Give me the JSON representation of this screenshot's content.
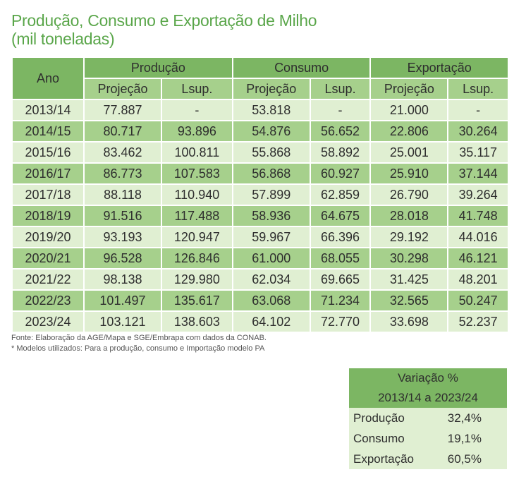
{
  "title": {
    "main": "Produção, Consumo e Exportação de Milho",
    "sub": "(mil toneladas)"
  },
  "table": {
    "ano_label": "Ano",
    "groups": [
      "Produção",
      "Consumo",
      "Exportação"
    ],
    "subheaders": [
      "Projeção",
      "Lsup.",
      "Projeção",
      "Lsup.",
      "Projeção",
      "Lsup."
    ],
    "rows": [
      [
        "2013/14",
        "77.887",
        "-",
        "53.818",
        "-",
        "21.000",
        "-"
      ],
      [
        "2014/15",
        "80.717",
        "93.896",
        "54.876",
        "56.652",
        "22.806",
        "30.264"
      ],
      [
        "2015/16",
        "83.462",
        "100.811",
        "55.868",
        "58.892",
        "25.001",
        "35.117"
      ],
      [
        "2016/17",
        "86.773",
        "107.583",
        "56.868",
        "60.927",
        "25.910",
        "37.144"
      ],
      [
        "2017/18",
        "88.118",
        "110.940",
        "57.899",
        "62.859",
        "26.790",
        "39.264"
      ],
      [
        "2018/19",
        "91.516",
        "117.488",
        "58.936",
        "64.675",
        "28.018",
        "41.748"
      ],
      [
        "2019/20",
        "93.193",
        "120.947",
        "59.967",
        "66.396",
        "29.192",
        "44.016"
      ],
      [
        "2020/21",
        "96.528",
        "126.846",
        "61.000",
        "68.055",
        "30.298",
        "46.121"
      ],
      [
        "2021/22",
        "98.138",
        "129.980",
        "62.034",
        "69.665",
        "31.425",
        "48.201"
      ],
      [
        "2022/23",
        "101.497",
        "135.617",
        "63.068",
        "71.234",
        "32.565",
        "50.247"
      ],
      [
        "2023/24",
        "103.121",
        "138.603",
        "64.102",
        "72.770",
        "33.698",
        "52.237"
      ]
    ]
  },
  "notes": {
    "source": "Fonte: Elaboração da AGE/Mapa e SGE/Embrapa com dados da CONAB.",
    "models": "* Modelos utilizados: Para a produção, consumo e Importação modelo PA"
  },
  "variation": {
    "header1": "Variação %",
    "header2": "2013/14 a 2023/24",
    "rows": [
      {
        "label": "Produção",
        "value": "32,4%"
      },
      {
        "label": "Consumo",
        "value": "19,1%"
      },
      {
        "label": "Exportação",
        "value": "60,5%"
      }
    ]
  },
  "colors": {
    "title": "#5aa64a",
    "header_dark": "#7cb663",
    "header_light": "#a6d08c",
    "row_light": "#e0efd2"
  }
}
